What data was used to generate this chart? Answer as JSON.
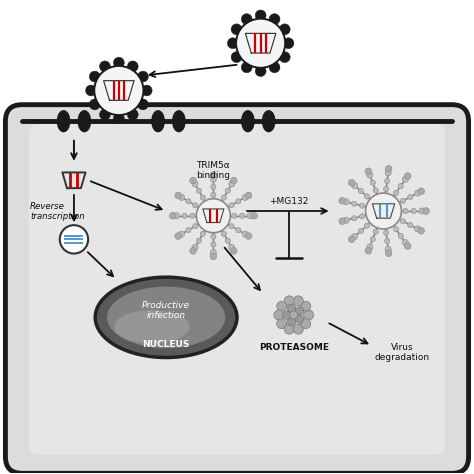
{
  "bg_color": "#ffffff",
  "cell_fill": "#e0e0e0",
  "cell_edge": "#1a1a1a",
  "membrane_color": "#1a1a1a",
  "white": "#f8f8f8",
  "black": "#111111",
  "red": "#cc0000",
  "blue": "#5599cc",
  "gray_arm": "#999999",
  "gray_dark": "#555555",
  "proteasome_color": "#888888",
  "nucleus_outer": "#666666",
  "nucleus_inner": "#999999",
  "text_color": "#111111",
  "label_TRIM5": "TRIM5α\nbinding",
  "label_reverse": "Reverse\ntranscription",
  "label_MG132": "+MG132",
  "label_proteasome": "PROTEASOME",
  "label_virus_deg": "Virus\ndegradation",
  "label_productive": "Productive\ninfection",
  "label_nucleus": "NUCLEUS"
}
